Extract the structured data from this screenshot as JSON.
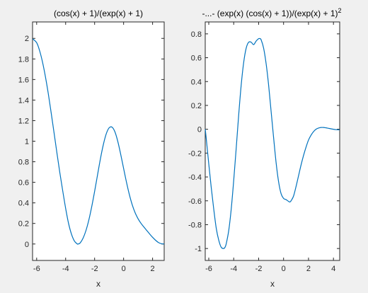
{
  "chart_data": [
    {
      "type": "line",
      "title": "(cos(x) + 1)/(exp(x) + 1)",
      "xlabel": "x",
      "ylabel": "",
      "xlim": [
        -6.2832,
        2.8
      ],
      "ylim": [
        -0.16,
        2.16
      ],
      "xticks": [
        -6,
        -4,
        -2,
        0,
        2
      ],
      "yticks": [
        0,
        0.2,
        0.4,
        0.6,
        0.8,
        1,
        1.2,
        1.4,
        1.6,
        1.8,
        2
      ],
      "grid": false,
      "series_color": "#0072bd",
      "series": [
        {
          "x": [
            -6.28,
            -6.0,
            -5.8,
            -5.6,
            -5.4,
            -5.2,
            -5.0,
            -4.8,
            -4.6,
            -4.4,
            -4.2,
            -4.0,
            -3.8,
            -3.6,
            -3.4,
            -3.2,
            -3.14,
            -3.0,
            -2.8,
            -2.6,
            -2.4,
            -2.2,
            -2.0,
            -1.8,
            -1.6,
            -1.4,
            -1.2,
            -1.0,
            -0.8,
            -0.6,
            -0.4,
            -0.2,
            0.0,
            0.2,
            0.4,
            0.6,
            0.8,
            1.0,
            1.2,
            1.4,
            1.6,
            1.8,
            2.0,
            2.2,
            2.4,
            2.6,
            2.8
          ],
          "y": [
            1.996,
            1.958,
            1.882,
            1.772,
            1.631,
            1.465,
            1.277,
            1.082,
            0.884,
            0.693,
            0.516,
            0.347,
            0.201,
            0.097,
            0.03,
            0.001,
            0.0,
            0.01,
            0.056,
            0.13,
            0.233,
            0.363,
            0.512,
            0.671,
            0.829,
            0.966,
            1.071,
            1.13,
            1.137,
            1.091,
            0.997,
            0.872,
            0.735,
            0.6,
            0.479,
            0.379,
            0.302,
            0.245,
            0.201,
            0.165,
            0.131,
            0.097,
            0.065,
            0.037,
            0.015,
            0.003,
            0.0
          ]
        }
      ]
    },
    {
      "type": "line",
      "title_main": "-...- (exp(x) (cos(x) + 1))/(exp(x) + 1)",
      "title_sup": "2",
      "xlabel": "x",
      "ylabel": "",
      "xlim": [
        -6.2832,
        4.5
      ],
      "ylim": [
        -1.1,
        0.9
      ],
      "xticks": [
        -6,
        -4,
        -2,
        0,
        2,
        4
      ],
      "yticks": [
        -1,
        -0.8,
        -0.6,
        -0.4,
        -0.2,
        0,
        0.2,
        0.4,
        0.6,
        0.8
      ],
      "grid": false,
      "series_color": "#0072bd",
      "series": [
        {
          "x": [
            -6.28,
            -6.2,
            -6.0,
            -5.8,
            -5.6,
            -5.4,
            -5.2,
            -5.0,
            -4.8,
            -4.7,
            -4.6,
            -4.4,
            -4.2,
            -4.0,
            -3.8,
            -3.6,
            -3.4,
            -3.2,
            -3.0,
            -2.8,
            -2.6,
            -2.4,
            -2.2,
            -2.0,
            -1.9,
            -1.8,
            -1.6,
            -1.4,
            -1.2,
            -1.0,
            -0.8,
            -0.6,
            -0.4,
            -0.2,
            0.0,
            0.2,
            0.4,
            0.5,
            0.6,
            0.8,
            1.0,
            1.2,
            1.4,
            1.6,
            1.8,
            2.0,
            2.2,
            2.4,
            2.6,
            2.8,
            3.0,
            3.2,
            3.4,
            3.6,
            3.8,
            4.0,
            4.2,
            4.5
          ],
          "y": [
            0.0,
            -0.08,
            -0.29,
            -0.49,
            -0.67,
            -0.83,
            -0.93,
            -0.99,
            -1.0,
            -0.99,
            -0.96,
            -0.85,
            -0.67,
            -0.43,
            -0.16,
            0.12,
            0.37,
            0.56,
            0.68,
            0.73,
            0.73,
            0.71,
            0.74,
            0.76,
            0.76,
            0.75,
            0.68,
            0.55,
            0.37,
            0.15,
            -0.07,
            -0.28,
            -0.44,
            -0.54,
            -0.58,
            -0.59,
            -0.605,
            -0.61,
            -0.6,
            -0.56,
            -0.48,
            -0.39,
            -0.3,
            -0.22,
            -0.15,
            -0.09,
            -0.05,
            -0.02,
            0.0,
            0.01,
            0.015,
            0.015,
            0.012,
            0.008,
            0.004,
            0.0,
            -0.003,
            -0.005
          ]
        }
      ]
    }
  ]
}
